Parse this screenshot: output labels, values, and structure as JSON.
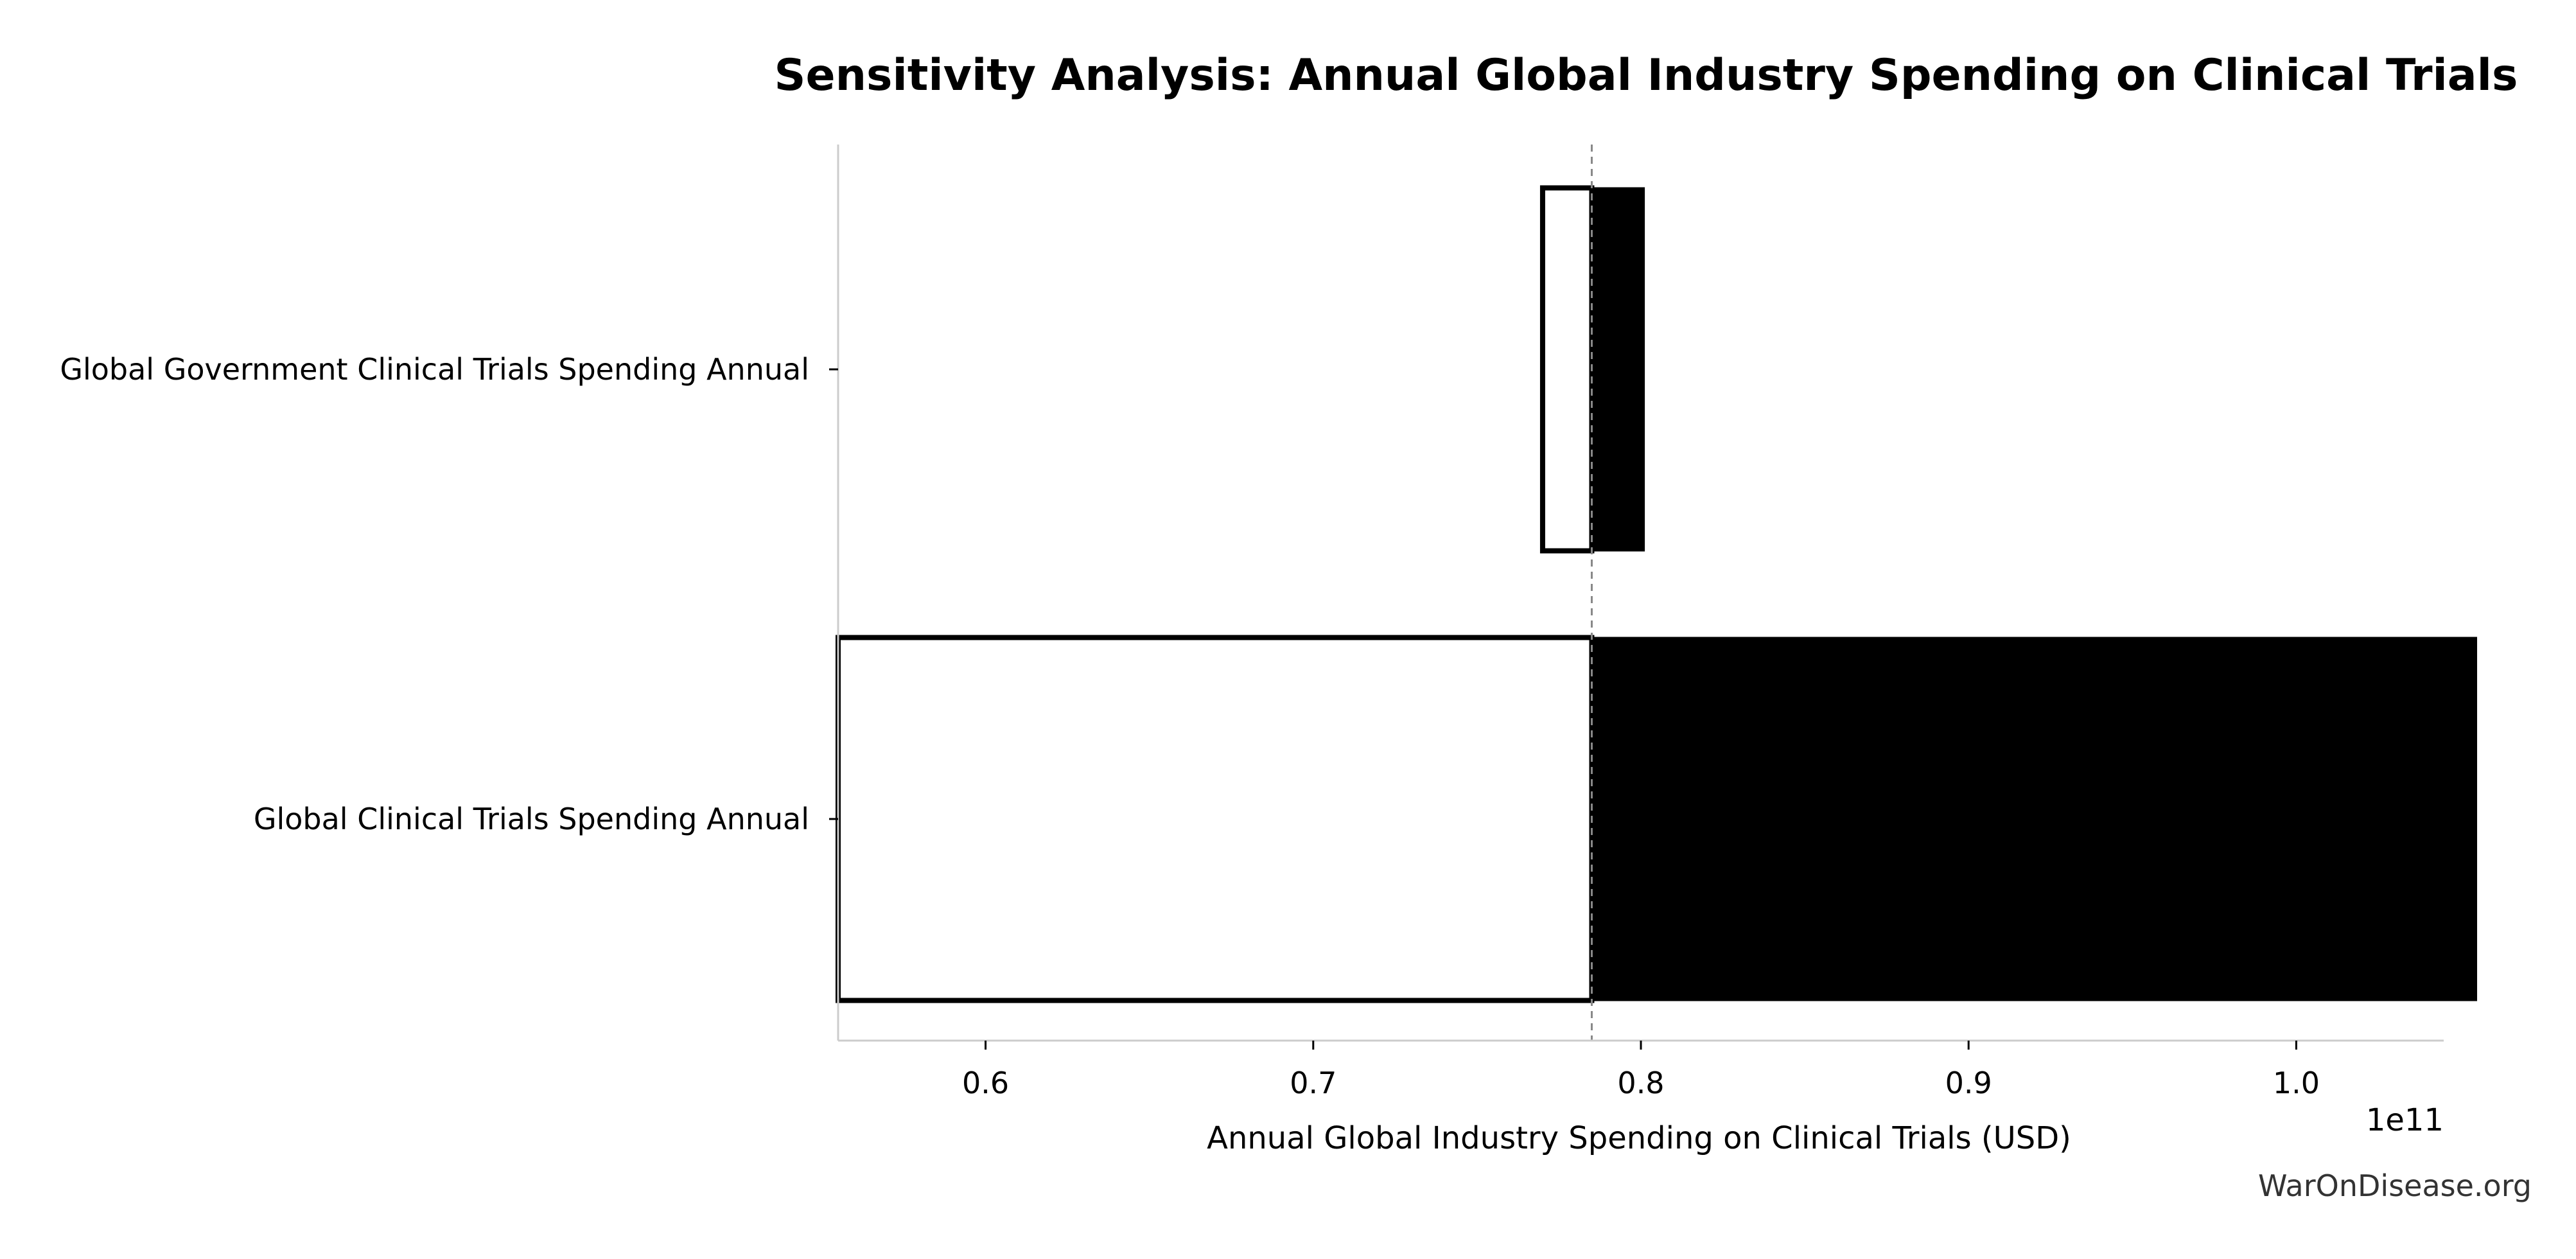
{
  "chart_data": {
    "type": "bar",
    "orientation": "horizontal",
    "title": "Sensitivity Analysis: Annual Global Industry Spending on Clinical Trials",
    "xlabel": "Annual Global Industry Spending on Clinical Trials (USD)",
    "ylabel": "",
    "x_offset_label": "1e11",
    "x_scale_factor": 100000000000,
    "xlim": [
      55500000000,
      104500000000
    ],
    "x_ticks": [
      60000000000,
      70000000000,
      80000000000,
      90000000000,
      100000000000
    ],
    "x_tick_labels": [
      "0.6",
      "0.7",
      "0.8",
      "0.9",
      "1.0"
    ],
    "baseline": 78500000000,
    "categories": [
      "Global Government Clinical Trials Spending Annual",
      "Global Clinical Trials Spending Annual"
    ],
    "series": [
      {
        "values_low": [
          77000000000,
          55500000000
        ],
        "values_high": [
          80100000000,
          105500000000
        ]
      }
    ],
    "colors": {
      "low_fill": "#ffffff",
      "high_fill": "#000000",
      "bar_edge": "#000000",
      "baseline": "#888888",
      "axis": "#cccccc"
    },
    "grid": false,
    "legend": "none",
    "watermark": "WarOnDisease.org"
  }
}
